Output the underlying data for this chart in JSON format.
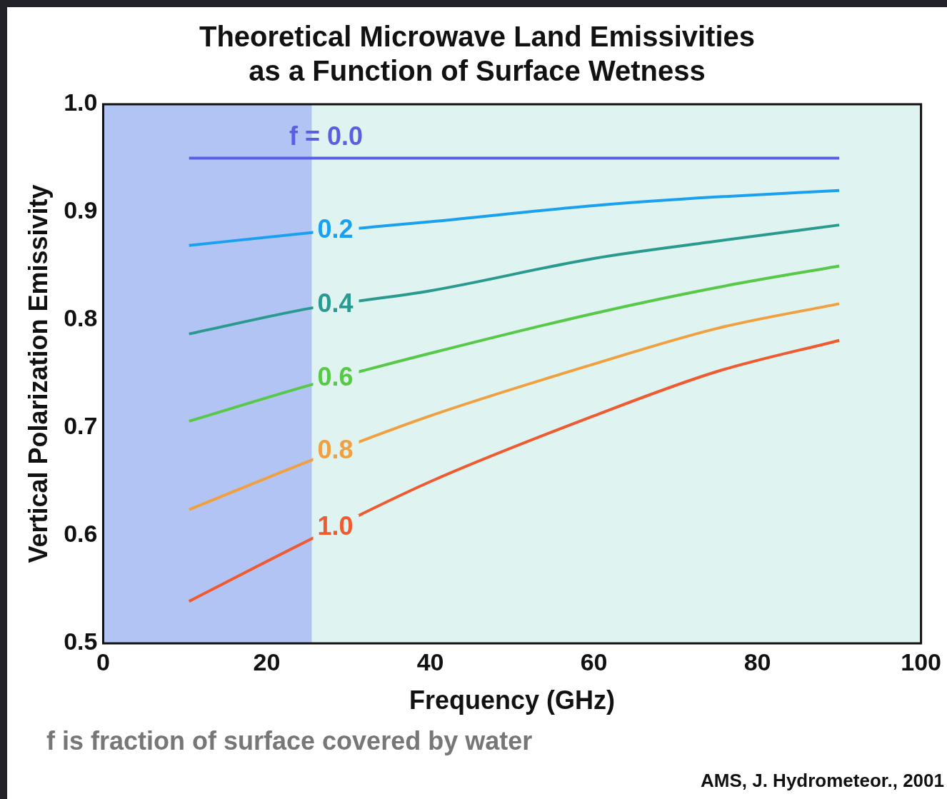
{
  "chart_data": {
    "type": "line",
    "title": "Theoretical Microwave Land Emissivities\nas a Function of Surface Wetness",
    "xlabel": "Frequency (GHz)",
    "ylabel": "Vertical Polarization Emissivity",
    "x": [
      10.5,
      25.5,
      40,
      60,
      75,
      90
    ],
    "series": [
      {
        "name": "f = 0.0",
        "color": "#5a5ee0",
        "values": [
          0.95,
          0.95,
          0.95,
          0.95,
          0.95,
          0.95
        ]
      },
      {
        "name": "0.2",
        "color": "#1aa0f0",
        "values": [
          0.869,
          0.881,
          0.891,
          0.906,
          0.914,
          0.92
        ]
      },
      {
        "name": "0.4",
        "color": "#2a9a90",
        "values": [
          0.787,
          0.811,
          0.827,
          0.857,
          0.873,
          0.888
        ]
      },
      {
        "name": "0.6",
        "color": "#58c848",
        "values": [
          0.706,
          0.74,
          0.769,
          0.806,
          0.83,
          0.85
        ]
      },
      {
        "name": "0.8",
        "color": "#f0a040",
        "values": [
          0.624,
          0.67,
          0.711,
          0.759,
          0.792,
          0.815
        ]
      },
      {
        "name": "1.0",
        "color": "#f05a30",
        "values": [
          0.539,
          0.597,
          0.65,
          0.711,
          0.752,
          0.781
        ]
      }
    ],
    "xlim": [
      0,
      100
    ],
    "xticks": [
      0,
      20,
      40,
      60,
      80,
      100
    ],
    "ylim": [
      0.5,
      1.0
    ],
    "yticks": [
      {
        "value": 0.5,
        "label": "0.5"
      },
      {
        "value": 0.6,
        "label": "0.6"
      },
      {
        "value": 0.7,
        "label": "0.7"
      },
      {
        "value": 0.8,
        "label": "0.8"
      },
      {
        "value": 0.9,
        "label": "0.9"
      },
      {
        "value": 1.0,
        "label": "1.0"
      }
    ],
    "bands": [
      {
        "axis": "x",
        "from": 0,
        "to": 25.5,
        "color": "#b2c4f4"
      }
    ],
    "legend": false,
    "marker": "none",
    "line_style": "solid",
    "annotations": [
      "f is fraction of surface covered by water",
      "AMS, J. Hydrometeor., 2001"
    ]
  }
}
